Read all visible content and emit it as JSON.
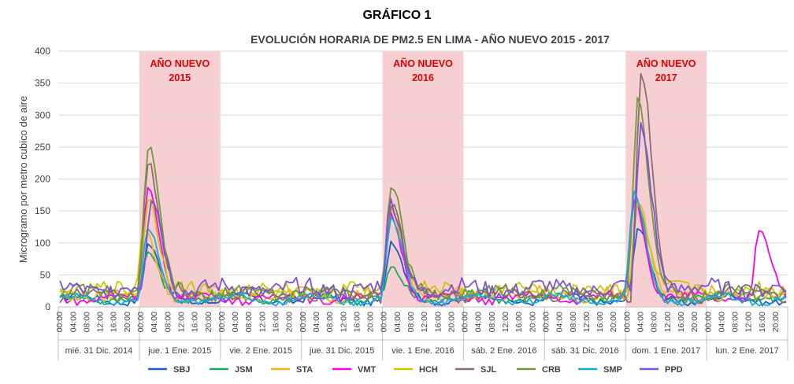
{
  "chart_data": {
    "type": "line",
    "title": "GRÁFICO 1",
    "subtitle": "EVOLUCIÓN HORARIA DE PM2.5 EN LIMA - AÑO NUEVO 2015 - 2017",
    "ylabel": "Microgramo por metro cubico de aire",
    "ylim": [
      0,
      400
    ],
    "yticks": [
      0,
      50,
      100,
      150,
      200,
      250,
      300,
      350,
      400
    ],
    "grid": true,
    "legend_position": "bottom",
    "hour_ticks": [
      "00:00",
      "04:00",
      "08:00",
      "12:00",
      "16:00",
      "20:00"
    ],
    "day_labels": [
      "mié. 31 Dic. 2014",
      "jue. 1 Ene. 2015",
      "vie. 2 Ene. 2015",
      "jue. 31 Dic. 2015",
      "vie. 1 Ene. 2016",
      "sáb. 2 Ene. 2016",
      "sáb. 31 Dic. 2016",
      "dom. 1 Ene. 2017",
      "lun. 2 Ene. 2017"
    ],
    "annotations": [
      {
        "line1": "AÑO NUEVO",
        "line2": "2015",
        "day_index": 1
      },
      {
        "line1": "AÑO NUEVO",
        "line2": "2016",
        "day_index": 4
      },
      {
        "line1": "AÑO NUEVO",
        "line2": "2017",
        "day_index": 7
      }
    ],
    "series": [
      {
        "name": "SBJ",
        "color": "#1f5fbf",
        "peaks": [
          [
            1,
            2,
            95
          ],
          [
            4,
            2,
            100
          ],
          [
            7,
            3,
            120
          ]
        ],
        "base": 12
      },
      {
        "name": "JSM",
        "color": "#1faa59",
        "peaks": [
          [
            1,
            2,
            80
          ],
          [
            4,
            2,
            55
          ],
          [
            7,
            2,
            160
          ]
        ],
        "base": 14
      },
      {
        "name": "STA",
        "color": "#f2b31a",
        "peaks": [
          [
            1,
            1,
            120
          ],
          [
            4,
            2,
            150
          ],
          [
            7,
            3,
            165
          ]
        ],
        "base": 20
      },
      {
        "name": "VMT",
        "color": "#ff00e6",
        "peaks": [
          [
            1,
            2,
            190
          ],
          [
            4,
            2,
            145
          ],
          [
            7,
            2,
            175
          ],
          [
            8,
            15,
            120
          ]
        ],
        "base": 14
      },
      {
        "name": "HCH",
        "color": "#c8c800",
        "peaks": [
          [
            1,
            2,
            175
          ],
          [
            4,
            2,
            170
          ],
          [
            7,
            3,
            160
          ]
        ],
        "base": 25
      },
      {
        "name": "SJL",
        "color": "#8a6e6e",
        "peaks": [
          [
            1,
            2,
            230
          ],
          [
            4,
            2,
            165
          ],
          [
            7,
            4,
            372
          ]
        ],
        "base": 20
      },
      {
        "name": "CRB",
        "color": "#6f9a3a",
        "peaks": [
          [
            1,
            2,
            248
          ],
          [
            4,
            2,
            187
          ],
          [
            7,
            3,
            320
          ]
        ],
        "base": 22
      },
      {
        "name": "SMP",
        "color": "#1aa9e0",
        "peaks": [
          [
            1,
            2,
            120
          ],
          [
            4,
            2,
            135
          ],
          [
            7,
            2,
            175
          ]
        ],
        "base": 12
      },
      {
        "name": "PPD",
        "color": "#7b52d6",
        "peaks": [
          [
            1,
            3,
            170
          ],
          [
            4,
            2,
            160
          ],
          [
            7,
            4,
            278
          ]
        ],
        "base": 28
      }
    ]
  }
}
